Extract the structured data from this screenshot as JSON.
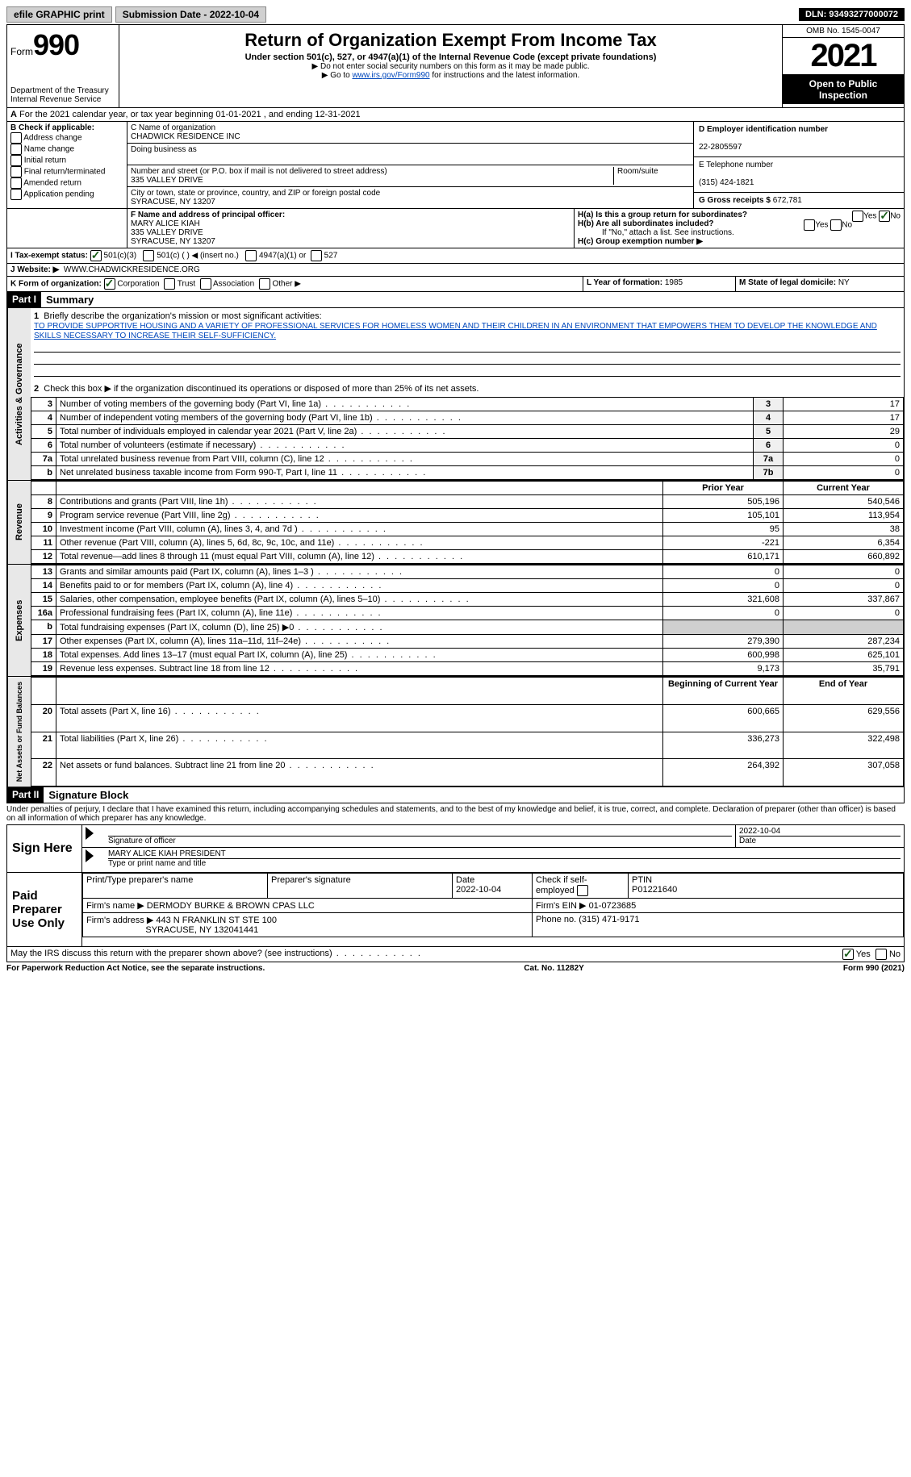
{
  "topbar": {
    "efile": "efile GRAPHIC print",
    "sub_label": "Submission Date - 2022-10-04",
    "dln_label": "DLN: 93493277000072"
  },
  "header": {
    "form_prefix": "Form",
    "form_num": "990",
    "dept": "Department of the Treasury",
    "irs": "Internal Revenue Service",
    "title": "Return of Organization Exempt From Income Tax",
    "subtitle": "Under section 501(c), 527, or 4947(a)(1) of the Internal Revenue Code (except private foundations)",
    "note1": "▶ Do not enter social security numbers on this form as it may be made public.",
    "note2_pre": "▶ Go to ",
    "note2_link": "www.irs.gov/Form990",
    "note2_post": " for instructions and the latest information.",
    "omb": "OMB No. 1545-0047",
    "year": "2021",
    "open": "Open to Public Inspection"
  },
  "line_a": "For the 2021 calendar year, or tax year beginning 01-01-2021    , and ending 12-31-2021",
  "box_b": {
    "label": "B Check if applicable:",
    "items": [
      "Address change",
      "Name change",
      "Initial return",
      "Final return/terminated",
      "Amended return",
      "Application pending"
    ]
  },
  "box_c": {
    "name_label": "C Name of organization",
    "name": "CHADWICK RESIDENCE INC",
    "dba_label": "Doing business as",
    "addr_label": "Number and street (or P.O. box if mail is not delivered to street address)",
    "room_label": "Room/suite",
    "addr": "335 VALLEY DRIVE",
    "city_label": "City or town, state or province, country, and ZIP or foreign postal code",
    "city": "SYRACUSE, NY  13207"
  },
  "box_d": {
    "label": "D Employer identification number",
    "val": "22-2805597"
  },
  "box_e": {
    "label": "E Telephone number",
    "val": "(315) 424-1821"
  },
  "box_g": {
    "label": "G Gross receipts $",
    "val": "672,781"
  },
  "box_f": {
    "label": "F  Name and address of principal officer:",
    "name": "MARY ALICE KIAH",
    "addr1": "335 VALLEY DRIVE",
    "addr2": "SYRACUSE, NY  13207"
  },
  "box_h": {
    "a": "H(a)  Is this a group return for subordinates?",
    "b": "H(b)  Are all subordinates included?",
    "b_note": "If \"No,\" attach a list. See instructions.",
    "c": "H(c)  Group exemption number ▶",
    "yes": "Yes",
    "no": "No"
  },
  "box_i": {
    "label": "I  Tax-exempt status:",
    "opts": [
      "501(c)(3)",
      "501(c) (  ) ◀ (insert no.)",
      "4947(a)(1) or",
      "527"
    ]
  },
  "box_j": {
    "label": "J  Website: ▶",
    "val": "WWW.CHADWICKRESIDENCE.ORG"
  },
  "box_k": {
    "label": "K Form of organization:",
    "opts": [
      "Corporation",
      "Trust",
      "Association",
      "Other ▶"
    ]
  },
  "box_l": {
    "label": "L Year of formation:",
    "val": "1985"
  },
  "box_m": {
    "label": "M State of legal domicile:",
    "val": "NY"
  },
  "part1": {
    "label": "Part I",
    "title": "Summary"
  },
  "mission_label": "Briefly describe the organization's mission or most significant activities:",
  "mission": "TO PROVIDE SUPPORTIVE HOUSING AND A VARIETY OF PROFESSIONAL SERVICES FOR HOMELESS WOMEN AND THEIR CHILDREN IN AN ENVIRONMENT THAT EMPOWERS THEM TO DEVELOP THE KNOWLEDGE AND SKILLS NECESSARY TO INCREASE THEIR SELF-SUFFICIENCY.",
  "line2": "Check this box ▶       if the organization discontinued its operations or disposed of more than 25% of its net assets.",
  "governance": [
    {
      "n": "3",
      "t": "Number of voting members of the governing body (Part VI, line 1a)",
      "b": "3",
      "v": "17"
    },
    {
      "n": "4",
      "t": "Number of independent voting members of the governing body (Part VI, line 1b)",
      "b": "4",
      "v": "17"
    },
    {
      "n": "5",
      "t": "Total number of individuals employed in calendar year 2021 (Part V, line 2a)",
      "b": "5",
      "v": "29"
    },
    {
      "n": "6",
      "t": "Total number of volunteers (estimate if necessary)",
      "b": "6",
      "v": "0"
    },
    {
      "n": "7a",
      "t": "Total unrelated business revenue from Part VIII, column (C), line 12",
      "b": "7a",
      "v": "0"
    },
    {
      "n": "b",
      "t": "Net unrelated business taxable income from Form 990-T, Part I, line 11",
      "b": "7b",
      "v": "0"
    }
  ],
  "col_headers": {
    "prior": "Prior Year",
    "current": "Current Year"
  },
  "revenue": [
    {
      "n": "8",
      "t": "Contributions and grants (Part VIII, line 1h)",
      "p": "505,196",
      "c": "540,546"
    },
    {
      "n": "9",
      "t": "Program service revenue (Part VIII, line 2g)",
      "p": "105,101",
      "c": "113,954"
    },
    {
      "n": "10",
      "t": "Investment income (Part VIII, column (A), lines 3, 4, and 7d )",
      "p": "95",
      "c": "38"
    },
    {
      "n": "11",
      "t": "Other revenue (Part VIII, column (A), lines 5, 6d, 8c, 9c, 10c, and 11e)",
      "p": "-221",
      "c": "6,354"
    },
    {
      "n": "12",
      "t": "Total revenue—add lines 8 through 11 (must equal Part VIII, column (A), line 12)",
      "p": "610,171",
      "c": "660,892"
    }
  ],
  "expenses": [
    {
      "n": "13",
      "t": "Grants and similar amounts paid (Part IX, column (A), lines 1–3 )",
      "p": "0",
      "c": "0"
    },
    {
      "n": "14",
      "t": "Benefits paid to or for members (Part IX, column (A), line 4)",
      "p": "0",
      "c": "0"
    },
    {
      "n": "15",
      "t": "Salaries, other compensation, employee benefits (Part IX, column (A), lines 5–10)",
      "p": "321,608",
      "c": "337,867"
    },
    {
      "n": "16a",
      "t": "Professional fundraising fees (Part IX, column (A), line 11e)",
      "p": "0",
      "c": "0"
    },
    {
      "n": "b",
      "t": "Total fundraising expenses (Part IX, column (D), line 25) ▶0",
      "p": "",
      "c": "",
      "shade": true
    },
    {
      "n": "17",
      "t": "Other expenses (Part IX, column (A), lines 11a–11d, 11f–24e)",
      "p": "279,390",
      "c": "287,234"
    },
    {
      "n": "18",
      "t": "Total expenses. Add lines 13–17 (must equal Part IX, column (A), line 25)",
      "p": "600,998",
      "c": "625,101"
    },
    {
      "n": "19",
      "t": "Revenue less expenses. Subtract line 18 from line 12",
      "p": "9,173",
      "c": "35,791"
    }
  ],
  "net_headers": {
    "begin": "Beginning of Current Year",
    "end": "End of Year"
  },
  "netassets": [
    {
      "n": "20",
      "t": "Total assets (Part X, line 16)",
      "p": "600,665",
      "c": "629,556"
    },
    {
      "n": "21",
      "t": "Total liabilities (Part X, line 26)",
      "p": "336,273",
      "c": "322,498"
    },
    {
      "n": "22",
      "t": "Net assets or fund balances. Subtract line 21 from line 20",
      "p": "264,392",
      "c": "307,058"
    }
  ],
  "part2": {
    "label": "Part II",
    "title": "Signature Block"
  },
  "penalty": "Under penalties of perjury, I declare that I have examined this return, including accompanying schedules and statements, and to the best of my knowledge and belief, it is true, correct, and complete. Declaration of preparer (other than officer) is based on all information of which preparer has any knowledge.",
  "sign": {
    "here": "Sign Here",
    "sig_label": "Signature of officer",
    "date": "2022-10-04",
    "date_label": "Date",
    "name": "MARY ALICE KIAH  PRESIDENT",
    "name_label": "Type or print name and title"
  },
  "preparer": {
    "title": "Paid Preparer Use Only",
    "name_label": "Print/Type preparer's name",
    "sig_label": "Preparer's signature",
    "date_label": "Date",
    "date": "2022-10-04",
    "check_label": "Check         if self-employed",
    "ptin_label": "PTIN",
    "ptin": "P01221640",
    "firm_label": "Firm's name    ▶",
    "firm": "DERMODY BURKE & BROWN CPAS LLC",
    "ein_label": "Firm's EIN ▶",
    "ein": "01-0723685",
    "addr_label": "Firm's address ▶",
    "addr1": "443 N FRANKLIN ST STE 100",
    "addr2": "SYRACUSE, NY  132041441",
    "phone_label": "Phone no.",
    "phone": "(315) 471-9171"
  },
  "discuss": "May the IRS discuss this return with the preparer shown above? (see instructions)",
  "footer": {
    "left": "For Paperwork Reduction Act Notice, see the separate instructions.",
    "mid": "Cat. No. 11282Y",
    "right": "Form 990 (2021)"
  },
  "tabs": {
    "gov": "Activities & Governance",
    "rev": "Revenue",
    "exp": "Expenses",
    "net": "Net Assets or Fund Balances"
  }
}
